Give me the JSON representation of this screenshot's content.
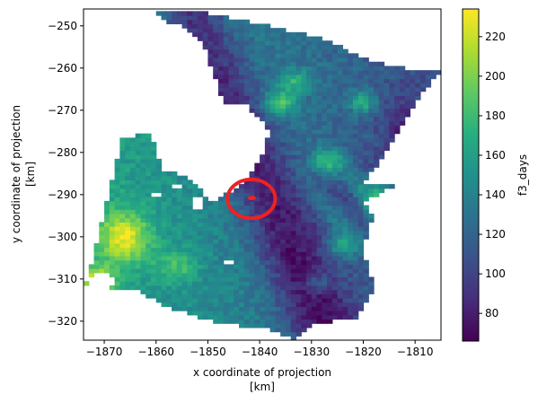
{
  "chart_data": {
    "type": "heatmap",
    "title": "",
    "xlabel_line1": "x coordinate of projection",
    "xlabel_line2": "[km]",
    "ylabel_line1": "y coordinate of projection",
    "ylabel_line2": "[km]",
    "colorbar_label": "f3_days",
    "xlim": [
      -1874,
      -1805
    ],
    "ylim": [
      -324.5,
      -246
    ],
    "xticks": [
      -1870,
      -1860,
      -1850,
      -1840,
      -1830,
      -1820,
      -1810
    ],
    "yticks": [
      -250,
      -260,
      -270,
      -280,
      -290,
      -300,
      -310,
      -320
    ],
    "xtick_labels": [
      "−1870",
      "−1860",
      "−1850",
      "−1840",
      "−1830",
      "−1820",
      "−1810"
    ],
    "ytick_labels": [
      "−250",
      "−260",
      "−270",
      "−280",
      "−290",
      "−300",
      "−310",
      "−320"
    ],
    "colorbar_range": [
      66,
      234
    ],
    "colorbar_ticks": [
      80,
      100,
      120,
      140,
      160,
      180,
      200,
      220
    ],
    "colorbar_tick_labels": [
      "80",
      "100",
      "120",
      "140",
      "160",
      "180",
      "200",
      "220"
    ],
    "colormap": "viridis",
    "grid": false,
    "overlay_circle": {
      "center": [
        -1841.6,
        -291
      ],
      "radius_km": 4.6,
      "color": "#ee2222"
    },
    "overlay_marker": {
      "x": -1841.5,
      "y": -290.8,
      "color": "#ee2222"
    }
  }
}
